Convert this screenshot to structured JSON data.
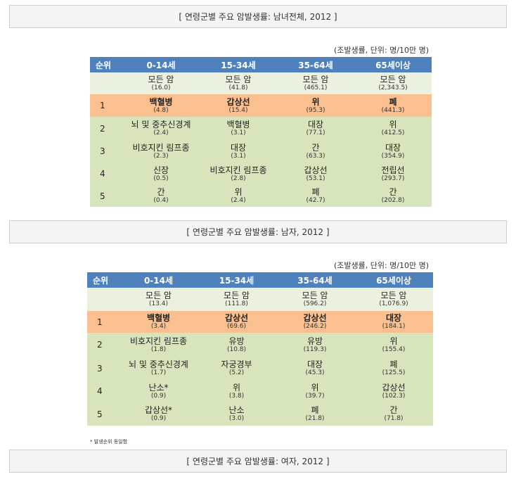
{
  "captions": {
    "overall": "[ 연령군별 주요 암발생률: 남녀전체, 2012 ]",
    "male": "[ 연령군별 주요 암발생률: 남자, 2012 ]",
    "female": "[ 연령군별 주요 암발생률: 여자, 2012 ]"
  },
  "unit_note": "(조발생률, 단위: 명/10만 명)",
  "footnote": "* 발생순위 동일함",
  "tables": [
    {
      "headers": [
        "순위",
        "0-14세",
        "15-34세",
        "35-64세",
        "65세이상"
      ],
      "rows": [
        {
          "rank": "",
          "cells": [
            {
              "name": "모든 암",
              "value": "(16.0)"
            },
            {
              "name": "모든 암",
              "value": "(41.8)"
            },
            {
              "name": "모든 암",
              "value": "(465.1)"
            },
            {
              "name": "모든 암",
              "value": "(2,343.5)"
            }
          ]
        },
        {
          "rank": "1",
          "cells": [
            {
              "name": "백혈병",
              "value": "(4.8)"
            },
            {
              "name": "갑상선",
              "value": "(15.4)"
            },
            {
              "name": "위",
              "value": "(95.3)"
            },
            {
              "name": "폐",
              "value": "(441.3)"
            }
          ]
        },
        {
          "rank": "2",
          "cells": [
            {
              "name": "뇌 및 중추신경계",
              "value": "(2.4)"
            },
            {
              "name": "백혈병",
              "value": "(3.1)"
            },
            {
              "name": "대장",
              "value": "(77.1)"
            },
            {
              "name": "위",
              "value": "(412.5)"
            }
          ]
        },
        {
          "rank": "3",
          "cells": [
            {
              "name": "비호지킨 림프종",
              "value": "(2.3)"
            },
            {
              "name": "대장",
              "value": "(3.1)"
            },
            {
              "name": "간",
              "value": "(63.3)"
            },
            {
              "name": "대장",
              "value": "(354.9)"
            }
          ]
        },
        {
          "rank": "4",
          "cells": [
            {
              "name": "신장",
              "value": "(0.5)"
            },
            {
              "name": "비호지킨 림프종",
              "value": "(2.8)"
            },
            {
              "name": "갑상선",
              "value": "(53.1)"
            },
            {
              "name": "전립선",
              "value": "(293.7)"
            }
          ]
        },
        {
          "rank": "5",
          "cells": [
            {
              "name": "간",
              "value": "(0.4)"
            },
            {
              "name": "위",
              "value": "(2.4)"
            },
            {
              "name": "폐",
              "value": "(42.7)"
            },
            {
              "name": "간",
              "value": "(202.8)"
            }
          ]
        }
      ]
    },
    {
      "headers": [
        "순위",
        "0-14세",
        "15-34세",
        "35-64세",
        "65세이상"
      ],
      "rows": [
        {
          "rank": "",
          "cells": [
            {
              "name": "모든 암",
              "value": "(13.4)"
            },
            {
              "name": "모든 암",
              "value": "(111.8)"
            },
            {
              "name": "모든 암",
              "value": "(596.2)"
            },
            {
              "name": "모든 암",
              "value": "(1,076.9)"
            }
          ]
        },
        {
          "rank": "1",
          "cells": [
            {
              "name": "백혈병",
              "value": "(3.4)"
            },
            {
              "name": "갑상선",
              "value": "(69.6)"
            },
            {
              "name": "갑상선",
              "value": "(246.2)"
            },
            {
              "name": "대장",
              "value": "(184.1)"
            }
          ]
        },
        {
          "rank": "2",
          "cells": [
            {
              "name": "비호지킨 림프종",
              "value": "(1.8)"
            },
            {
              "name": "유방",
              "value": "(10.8)"
            },
            {
              "name": "유방",
              "value": "(119.3)"
            },
            {
              "name": "위",
              "value": "(155.4)"
            }
          ]
        },
        {
          "rank": "3",
          "cells": [
            {
              "name": "뇌 및 중추신경계",
              "value": "(1.7)"
            },
            {
              "name": "자궁경부",
              "value": "(5.2)"
            },
            {
              "name": "대장",
              "value": "(45.3)"
            },
            {
              "name": "폐",
              "value": "(125.5)"
            }
          ]
        },
        {
          "rank": "4",
          "cells": [
            {
              "name": "난소*",
              "value": "(0.9)"
            },
            {
              "name": "위",
              "value": "(3.8)"
            },
            {
              "name": "위",
              "value": "(39.7)"
            },
            {
              "name": "갑상선",
              "value": "(102.3)"
            }
          ]
        },
        {
          "rank": "5",
          "cells": [
            {
              "name": "갑상선*",
              "value": "(0.9)"
            },
            {
              "name": "난소",
              "value": "(3.0)"
            },
            {
              "name": "폐",
              "value": "(21.8)"
            },
            {
              "name": "간",
              "value": "(71.8)"
            }
          ]
        }
      ]
    }
  ]
}
